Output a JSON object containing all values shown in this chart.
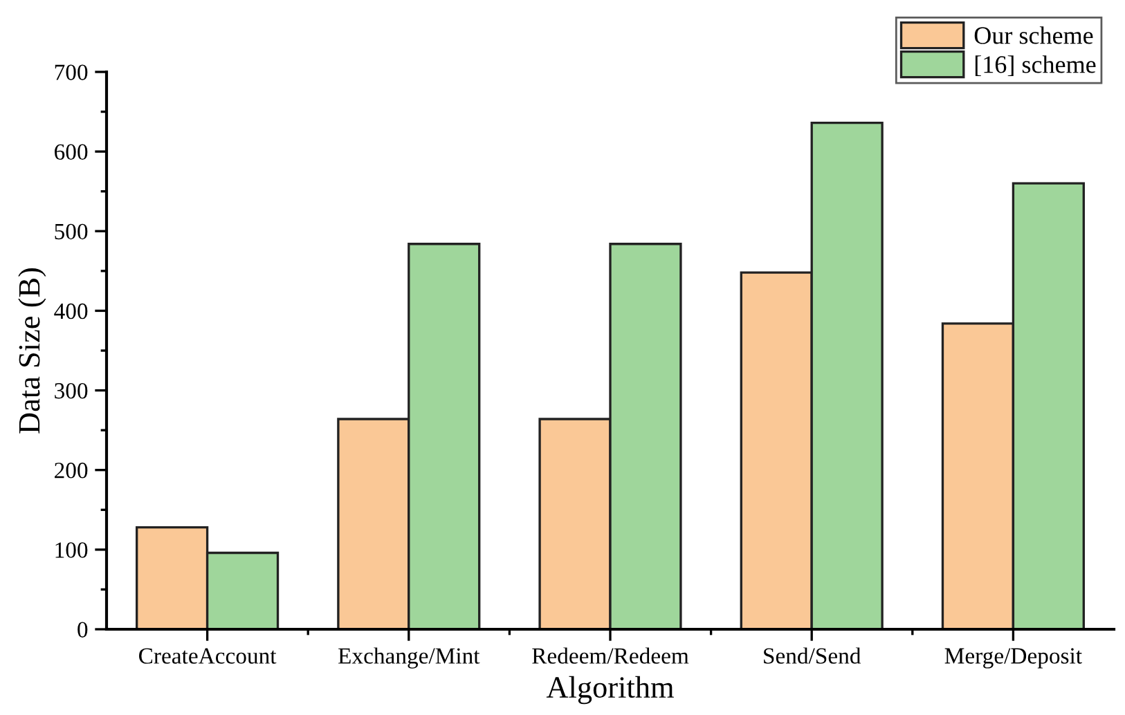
{
  "chart_data": {
    "type": "bar",
    "xlabel": "Algorithm",
    "ylabel": "Data Size (B)",
    "categories": [
      "CreateAccount",
      "Exchange/Mint",
      "Redeem/Redeem",
      "Send/Send",
      "Merge/Deposit"
    ],
    "series": [
      {
        "name": "Our scheme",
        "color": "#fac896",
        "values": [
          128,
          264,
          264,
          448,
          384
        ]
      },
      {
        "name": "[16] scheme",
        "color": "#9fd69b",
        "values": [
          96,
          484,
          484,
          636,
          560
        ]
      }
    ],
    "ylim": [
      0,
      700
    ],
    "yticks": [
      0,
      100,
      200,
      300,
      400,
      500,
      600,
      700
    ],
    "grid": false,
    "legend": "top right"
  }
}
